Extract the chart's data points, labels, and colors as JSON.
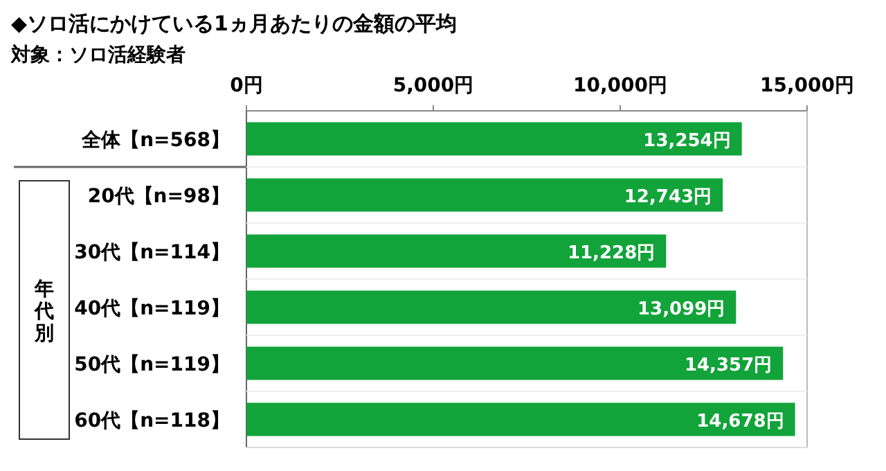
{
  "chart_data": {
    "type": "bar",
    "orientation": "horizontal",
    "title": "◆ソロ活にかけている1ヵ月あたりの金額の平均",
    "subtitle": "対象：ソロ活経験者",
    "categories": [
      "全体【n=568】",
      "20代【n=98】",
      "30代【n=114】",
      "40代【n=119】",
      "50代【n=119】",
      "60代【n=118】"
    ],
    "values": [
      13254,
      12743,
      11228,
      13099,
      14357,
      14678
    ],
    "value_labels": [
      "13,254円",
      "12,743円",
      "11,228円",
      "13,099円",
      "14,357円",
      "14,678円"
    ],
    "color": "#12a33a",
    "xlim": [
      0,
      15000
    ],
    "xticks": [
      {
        "value": 0,
        "label": "0円"
      },
      {
        "value": 5000,
        "label": "5,000円"
      },
      {
        "value": 10000,
        "label": "10,000円"
      },
      {
        "value": 15000,
        "label": "15,000円"
      }
    ],
    "annotations": [
      "年代別"
    ],
    "grid": false
  }
}
